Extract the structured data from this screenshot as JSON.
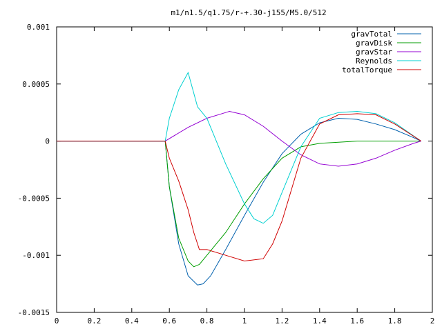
{
  "chart_data": {
    "type": "line",
    "title": "m1/n1.5/q1.75/r-+.30-j155/M5.0/512",
    "xlabel": "",
    "ylabel": "",
    "xlim": [
      0,
      2
    ],
    "ylim": [
      -0.0015,
      0.001
    ],
    "x_ticks": [
      "0",
      "0.2",
      "0.4",
      "0.6",
      "0.8",
      "1",
      "1.2",
      "1.4",
      "1.6",
      "1.8",
      "2"
    ],
    "y_ticks": [
      "0.001",
      "0.0005",
      "0",
      "-0.0005",
      "-0.001",
      "-0.0015"
    ],
    "grid": false,
    "legend_position": "top-right",
    "series": [
      {
        "name": "gravTotal",
        "color": "#0060ad",
        "x": [
          0,
          0.578,
          0.6,
          0.65,
          0.7,
          0.75,
          0.78,
          0.82,
          0.9,
          1.0,
          1.1,
          1.2,
          1.3,
          1.4,
          1.5,
          1.6,
          1.7,
          1.8,
          1.9,
          1.94
        ],
        "y": [
          0,
          0,
          -0.0004,
          -0.0009,
          -0.00118,
          -0.00126,
          -0.00125,
          -0.00118,
          -0.00095,
          -0.00065,
          -0.00036,
          -0.00011,
          6e-05,
          0.00016,
          0.0002,
          0.00019,
          0.00015,
          0.0001,
          3e-05,
          0
        ]
      },
      {
        "name": "gravDisk",
        "color": "#009e00",
        "x": [
          0,
          0.578,
          0.6,
          0.65,
          0.7,
          0.73,
          0.76,
          0.8,
          0.9,
          1.0,
          1.1,
          1.2,
          1.3,
          1.4,
          1.5,
          1.6,
          1.7,
          1.8,
          1.94
        ],
        "y": [
          0,
          0,
          -0.0004,
          -0.00085,
          -0.00105,
          -0.0011,
          -0.00108,
          -0.001,
          -0.0008,
          -0.00055,
          -0.00033,
          -0.00015,
          -5e-05,
          -2e-05,
          -1e-05,
          0,
          0,
          0,
          0
        ]
      },
      {
        "name": "gravStar",
        "color": "#9400d3",
        "x": [
          0,
          0.578,
          0.7,
          0.8,
          0.9,
          0.92,
          1.0,
          1.1,
          1.2,
          1.3,
          1.4,
          1.5,
          1.6,
          1.7,
          1.8,
          1.9,
          1.94
        ],
        "y": [
          0,
          0,
          0.00012,
          0.0002,
          0.00025,
          0.00026,
          0.00023,
          0.00013,
          0,
          -0.00012,
          -0.0002,
          -0.00022,
          -0.0002,
          -0.00015,
          -8e-05,
          -2e-05,
          0
        ]
      },
      {
        "name": "Reynolds",
        "color": "#00d0d0",
        "x": [
          0,
          0.578,
          0.6,
          0.65,
          0.7,
          0.75,
          0.8,
          0.9,
          1.0,
          1.05,
          1.1,
          1.15,
          1.2,
          1.3,
          1.4,
          1.5,
          1.6,
          1.7,
          1.8,
          1.94
        ],
        "y": [
          0,
          0,
          0.0002,
          0.00045,
          0.0006,
          0.0003,
          0.0002,
          -0.0002,
          -0.00055,
          -0.00068,
          -0.00072,
          -0.00065,
          -0.00045,
          -5e-05,
          0.0002,
          0.00025,
          0.00026,
          0.00024,
          0.00016,
          0
        ]
      },
      {
        "name": "totalTorque",
        "color": "#d00000",
        "x": [
          0,
          0.578,
          0.6,
          0.65,
          0.7,
          0.73,
          0.76,
          0.8,
          0.9,
          1.0,
          1.1,
          1.15,
          1.2,
          1.3,
          1.4,
          1.5,
          1.6,
          1.7,
          1.8,
          1.94
        ],
        "y": [
          0,
          0,
          -0.00015,
          -0.00035,
          -0.0006,
          -0.0008,
          -0.00095,
          -0.00095,
          -0.001,
          -0.00105,
          -0.00103,
          -0.0009,
          -0.0007,
          -0.00015,
          0.00015,
          0.00023,
          0.00024,
          0.00023,
          0.00015,
          0
        ]
      }
    ]
  }
}
